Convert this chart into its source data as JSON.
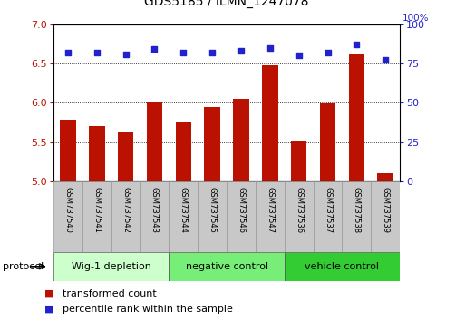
{
  "title": "GDS5185 / ILMN_1247078",
  "samples": [
    "GSM737540",
    "GSM737541",
    "GSM737542",
    "GSM737543",
    "GSM737544",
    "GSM737545",
    "GSM737546",
    "GSM737547",
    "GSM737536",
    "GSM737537",
    "GSM737538",
    "GSM737539"
  ],
  "bar_values": [
    5.78,
    5.7,
    5.62,
    6.02,
    5.76,
    5.94,
    6.05,
    6.48,
    5.52,
    5.99,
    6.62,
    5.1
  ],
  "dot_values": [
    82,
    82,
    81,
    84,
    82,
    82,
    83,
    85,
    80,
    82,
    87,
    77
  ],
  "ylim_left": [
    5.0,
    7.0
  ],
  "ylim_right": [
    0,
    100
  ],
  "yticks_left": [
    5.0,
    5.5,
    6.0,
    6.5,
    7.0
  ],
  "yticks_right": [
    0,
    25,
    50,
    75,
    100
  ],
  "bar_color": "#bb1100",
  "dot_color": "#2222cc",
  "grid_color": "#000000",
  "background_plot": "#ffffff",
  "background_xaxis": "#c8c8c8",
  "groups": [
    {
      "label": "Wig-1 depletion",
      "start": 0,
      "end": 4,
      "color": "#ccffcc"
    },
    {
      "label": "negative control",
      "start": 4,
      "end": 8,
      "color": "#77ee77"
    },
    {
      "label": "vehicle control",
      "start": 8,
      "end": 12,
      "color": "#33cc33"
    }
  ],
  "legend_items": [
    {
      "label": "transformed count",
      "color": "#bb1100"
    },
    {
      "label": "percentile rank within the sample",
      "color": "#2222cc"
    }
  ],
  "protocol_label": "protocol"
}
